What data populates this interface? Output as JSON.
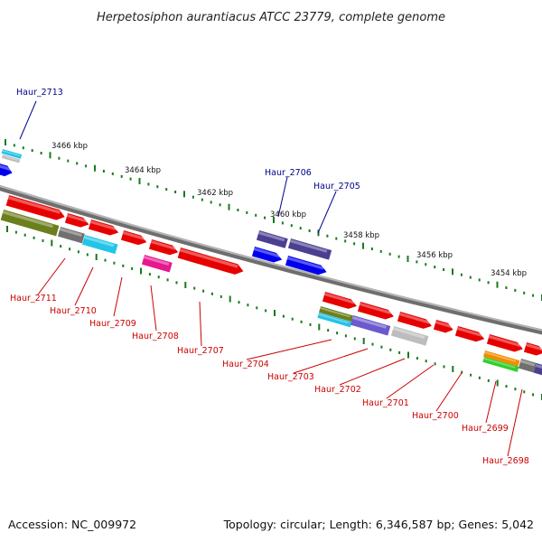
{
  "title": "Herpetosiphon aurantiacus ATCC 23779, complete genome",
  "footer": {
    "accession": "Accession: NC_009972",
    "summary": "Topology: circular; Length: 6,346,587 bp; Genes: 5,042"
  },
  "colors": {
    "label_top": "#00008b",
    "label_bottom": "#cc0000",
    "tick": "#1a7a1a",
    "backbone": "#888888"
  },
  "kbp_labels": [
    "3466 kbp",
    "3464 kbp",
    "3462 kbp",
    "3460 kbp",
    "3458 kbp",
    "3456 kbp",
    "3454 kbp"
  ],
  "gene_labels_top": [
    "Haur_2713",
    "Haur_2706",
    "Haur_2705"
  ],
  "gene_labels_bottom": [
    "Haur_2711",
    "Haur_2710",
    "Haur_2709",
    "Haur_2708",
    "Haur_2707",
    "Haur_2704",
    "Haur_2703",
    "Haur_2702",
    "Haur_2701",
    "Haur_2700",
    "Haur_2699",
    "Haur_2698"
  ]
}
